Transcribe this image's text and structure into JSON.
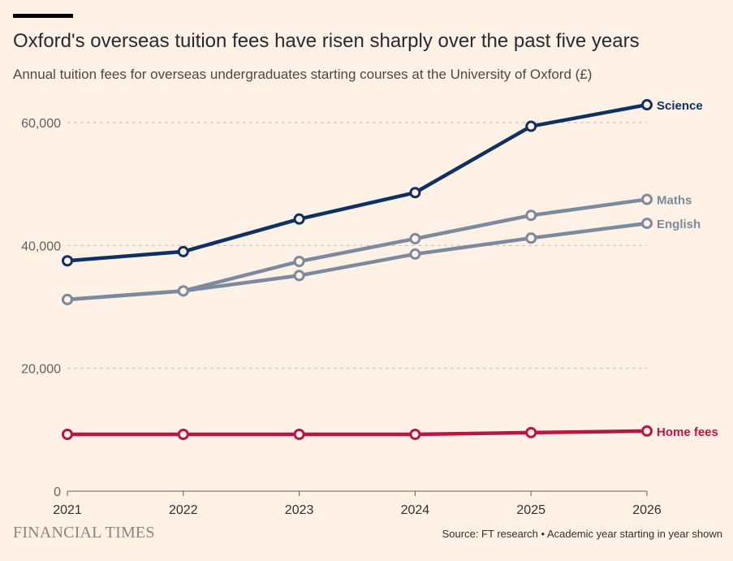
{
  "header": {
    "title": "Oxford's overseas tuition fees have risen sharply over the past five years",
    "subtitle": "Annual tuition fees for overseas undergraduates starting courses at the University of Oxford (£)"
  },
  "footer": {
    "brand": "FINANCIAL TIMES",
    "source": "Source: FT research • Academic year starting in year shown"
  },
  "chart_data": {
    "type": "line",
    "x": [
      2021,
      2022,
      2023,
      2024,
      2025,
      2026
    ],
    "xlim": [
      2021,
      2026
    ],
    "ylim": [
      0,
      60000
    ],
    "y_ticks": [
      0,
      20000,
      40000,
      60000
    ],
    "y_tick_labels": [
      "0",
      "20,000",
      "40,000",
      "60,000"
    ],
    "x_tick_labels": [
      "2021",
      "2022",
      "2023",
      "2024",
      "2025",
      "2026"
    ],
    "grid": "horizontal dashed",
    "legend": "direct labels at line ends",
    "series": [
      {
        "name": "Science",
        "color": "#0d3163",
        "values": [
          37500,
          39000,
          44300,
          48600,
          59400,
          62900
        ]
      },
      {
        "name": "Maths",
        "color": "#7b8a9f",
        "values": [
          31200,
          32600,
          37400,
          41100,
          44900,
          47500
        ]
      },
      {
        "name": "English",
        "color": "#7b8a9f",
        "values": [
          31200,
          32600,
          35100,
          38600,
          41200,
          43600
        ]
      },
      {
        "name": "Home fees",
        "color": "#b51847",
        "values": [
          9250,
          9250,
          9250,
          9250,
          9535,
          9790
        ]
      }
    ]
  }
}
